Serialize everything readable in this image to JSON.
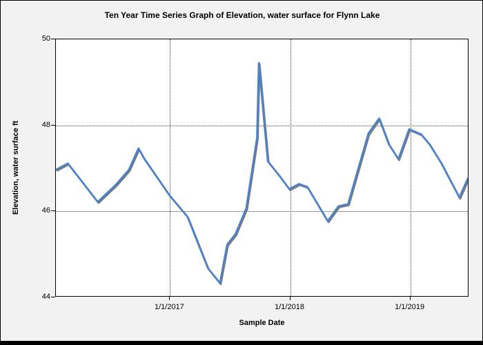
{
  "chart_data": {
    "type": "line",
    "title": "Ten Year Time Series Graph of Elevation, water surface for Flynn Lake",
    "xlabel": "Sample Date",
    "ylabel": "Elevation, water surface ft",
    "ylim": [
      44,
      50
    ],
    "yticks": [
      44,
      46,
      48,
      50
    ],
    "ygrid": [
      46,
      48
    ],
    "xlim_year": [
      2016.05,
      2019.49
    ],
    "xticks": [
      {
        "label": "1/1/2017",
        "year": 2017
      },
      {
        "label": "1/1/2018",
        "year": 2018
      },
      {
        "label": "1/1/2019",
        "year": 2019
      }
    ],
    "grid_style": "dotted",
    "legend": "none",
    "colors": {
      "line": "#4e82c8",
      "line_shadow": "#7a7a7a",
      "plot_background": "#ffffff",
      "figure_background": "#f2f2f2",
      "axis": "#000000"
    },
    "series": [
      {
        "name": "Elevation, water surface",
        "units": "ft",
        "x_year": [
          2016.05,
          2016.15,
          2016.4,
          2016.55,
          2016.66,
          2016.74,
          2016.79,
          2017.0,
          2017.15,
          2017.32,
          2017.42,
          2017.48,
          2017.55,
          2017.64,
          2017.73,
          2017.745,
          2017.82,
          2017.92,
          2018.0,
          2018.08,
          2018.15,
          2018.32,
          2018.41,
          2018.49,
          2018.66,
          2018.75,
          2018.83,
          2018.91,
          2019.0,
          2019.1,
          2019.17,
          2019.27,
          2019.42,
          2019.49
        ],
        "y_ft": [
          46.95,
          47.1,
          46.2,
          46.6,
          46.95,
          47.45,
          47.2,
          46.35,
          45.85,
          44.65,
          44.3,
          45.2,
          45.45,
          46.05,
          47.7,
          49.45,
          47.15,
          46.8,
          46.5,
          46.62,
          46.55,
          45.75,
          46.1,
          46.15,
          47.8,
          48.15,
          47.55,
          47.2,
          47.9,
          47.78,
          47.55,
          47.1,
          46.3,
          46.75
        ]
      }
    ]
  }
}
